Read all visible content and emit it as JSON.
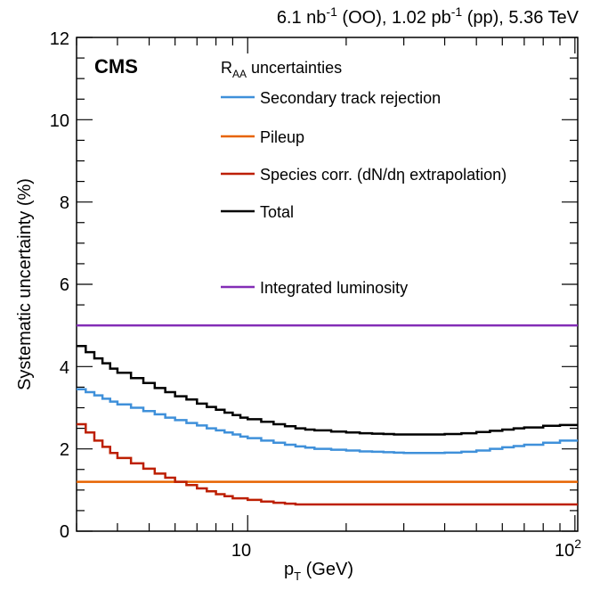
{
  "header": {
    "lumi_parts": [
      "6.1 nb",
      "-1",
      " (OO), 1.02 pb",
      "-1",
      " (pp), 5.36 TeV"
    ],
    "experiment": "CMS"
  },
  "legend": {
    "title_main": "R",
    "title_sub": "AA",
    "title_rest": " uncertainties",
    "entries": [
      {
        "label": "Secondary track rejection",
        "color": "#3f90da"
      },
      {
        "label": "Pileup",
        "color": "#e76300"
      },
      {
        "label": "Species corr. (dN/dη extrapolation)",
        "color": "#bd1f01"
      },
      {
        "label": "Total",
        "color": "#000000"
      },
      {
        "label": "Integrated luminosity",
        "color": "#832db6"
      }
    ]
  },
  "axes": {
    "y_label": "Systematic uncertainty (%)",
    "x_label_main": "p",
    "x_label_sub": "T",
    "x_label_rest": " (GeV)",
    "y_ticks": [
      "0",
      "2",
      "4",
      "6",
      "8",
      "10",
      "12"
    ],
    "x_tick_10": "10",
    "x_tick_100_base": "10",
    "x_tick_100_exp": "2"
  },
  "chart_data": {
    "type": "line",
    "x_scale": "log",
    "xlim": [
      3,
      102
    ],
    "ylim": [
      0,
      12
    ],
    "ylabel": "Systematic uncertainty (%)",
    "xlabel": "pT (GeV)",
    "title": "6.1 nb-1 (OO), 1.02 pb-1 (pp), 5.36 TeV",
    "legend_position": "top-right",
    "grid": false,
    "series": [
      {
        "name": "Secondary track rejection",
        "color": "#3f90da",
        "style": "step",
        "points": [
          [
            3.0,
            3.45
          ],
          [
            3.2,
            3.38
          ],
          [
            3.4,
            3.3
          ],
          [
            3.6,
            3.22
          ],
          [
            3.8,
            3.15
          ],
          [
            4.0,
            3.08
          ],
          [
            4.4,
            3.0
          ],
          [
            4.8,
            2.92
          ],
          [
            5.2,
            2.84
          ],
          [
            5.6,
            2.76
          ],
          [
            6.0,
            2.7
          ],
          [
            6.5,
            2.63
          ],
          [
            7.0,
            2.57
          ],
          [
            7.5,
            2.5
          ],
          [
            8.0,
            2.45
          ],
          [
            8.5,
            2.4
          ],
          [
            9.0,
            2.35
          ],
          [
            9.5,
            2.3
          ],
          [
            10,
            2.26
          ],
          [
            11,
            2.2
          ],
          [
            12,
            2.15
          ],
          [
            13,
            2.1
          ],
          [
            14,
            2.06
          ],
          [
            15,
            2.03
          ],
          [
            16,
            2.0
          ],
          [
            18,
            1.98
          ],
          [
            20,
            1.96
          ],
          [
            22,
            1.94
          ],
          [
            24,
            1.93
          ],
          [
            26,
            1.92
          ],
          [
            28,
            1.91
          ],
          [
            30,
            1.9
          ],
          [
            35,
            1.9
          ],
          [
            40,
            1.91
          ],
          [
            45,
            1.93
          ],
          [
            50,
            1.96
          ],
          [
            55,
            2.0
          ],
          [
            60,
            2.04
          ],
          [
            65,
            2.07
          ],
          [
            70,
            2.1
          ],
          [
            80,
            2.15
          ],
          [
            90,
            2.2
          ],
          [
            100,
            2.2
          ]
        ]
      },
      {
        "name": "Pileup",
        "color": "#e76300",
        "style": "step",
        "points": [
          [
            3.0,
            1.2
          ],
          [
            100,
            1.2
          ]
        ]
      },
      {
        "name": "Species corr. (dN/dη extrapolation)",
        "color": "#bd1f01",
        "style": "step",
        "points": [
          [
            3.0,
            2.6
          ],
          [
            3.2,
            2.4
          ],
          [
            3.4,
            2.2
          ],
          [
            3.6,
            2.05
          ],
          [
            3.8,
            1.9
          ],
          [
            4.0,
            1.78
          ],
          [
            4.4,
            1.65
          ],
          [
            4.8,
            1.52
          ],
          [
            5.2,
            1.4
          ],
          [
            5.6,
            1.3
          ],
          [
            6.0,
            1.2
          ],
          [
            6.5,
            1.12
          ],
          [
            7.0,
            1.04
          ],
          [
            7.5,
            0.97
          ],
          [
            8.0,
            0.9
          ],
          [
            8.5,
            0.85
          ],
          [
            9.0,
            0.8
          ],
          [
            10,
            0.76
          ],
          [
            11,
            0.72
          ],
          [
            12,
            0.69
          ],
          [
            13,
            0.67
          ],
          [
            14,
            0.65
          ],
          [
            100,
            0.65
          ]
        ]
      },
      {
        "name": "Total",
        "color": "#000000",
        "style": "step",
        "points": [
          [
            3.0,
            4.5
          ],
          [
            3.2,
            4.35
          ],
          [
            3.4,
            4.2
          ],
          [
            3.6,
            4.08
          ],
          [
            3.8,
            3.95
          ],
          [
            4.0,
            3.85
          ],
          [
            4.4,
            3.72
          ],
          [
            4.8,
            3.6
          ],
          [
            5.2,
            3.48
          ],
          [
            5.6,
            3.38
          ],
          [
            6.0,
            3.28
          ],
          [
            6.5,
            3.2
          ],
          [
            7.0,
            3.1
          ],
          [
            7.5,
            3.02
          ],
          [
            8.0,
            2.95
          ],
          [
            8.5,
            2.88
          ],
          [
            9.0,
            2.82
          ],
          [
            9.5,
            2.76
          ],
          [
            10,
            2.72
          ],
          [
            11,
            2.66
          ],
          [
            12,
            2.6
          ],
          [
            13,
            2.55
          ],
          [
            14,
            2.5
          ],
          [
            15,
            2.47
          ],
          [
            16,
            2.45
          ],
          [
            18,
            2.42
          ],
          [
            20,
            2.4
          ],
          [
            22,
            2.38
          ],
          [
            24,
            2.37
          ],
          [
            26,
            2.36
          ],
          [
            28,
            2.35
          ],
          [
            30,
            2.35
          ],
          [
            35,
            2.35
          ],
          [
            40,
            2.36
          ],
          [
            45,
            2.38
          ],
          [
            50,
            2.41
          ],
          [
            55,
            2.44
          ],
          [
            60,
            2.47
          ],
          [
            65,
            2.5
          ],
          [
            70,
            2.52
          ],
          [
            80,
            2.56
          ],
          [
            90,
            2.58
          ],
          [
            100,
            2.58
          ]
        ]
      },
      {
        "name": "Integrated luminosity",
        "color": "#832db6",
        "style": "step",
        "points": [
          [
            3.0,
            5.0
          ],
          [
            100,
            5.0
          ]
        ]
      }
    ]
  }
}
